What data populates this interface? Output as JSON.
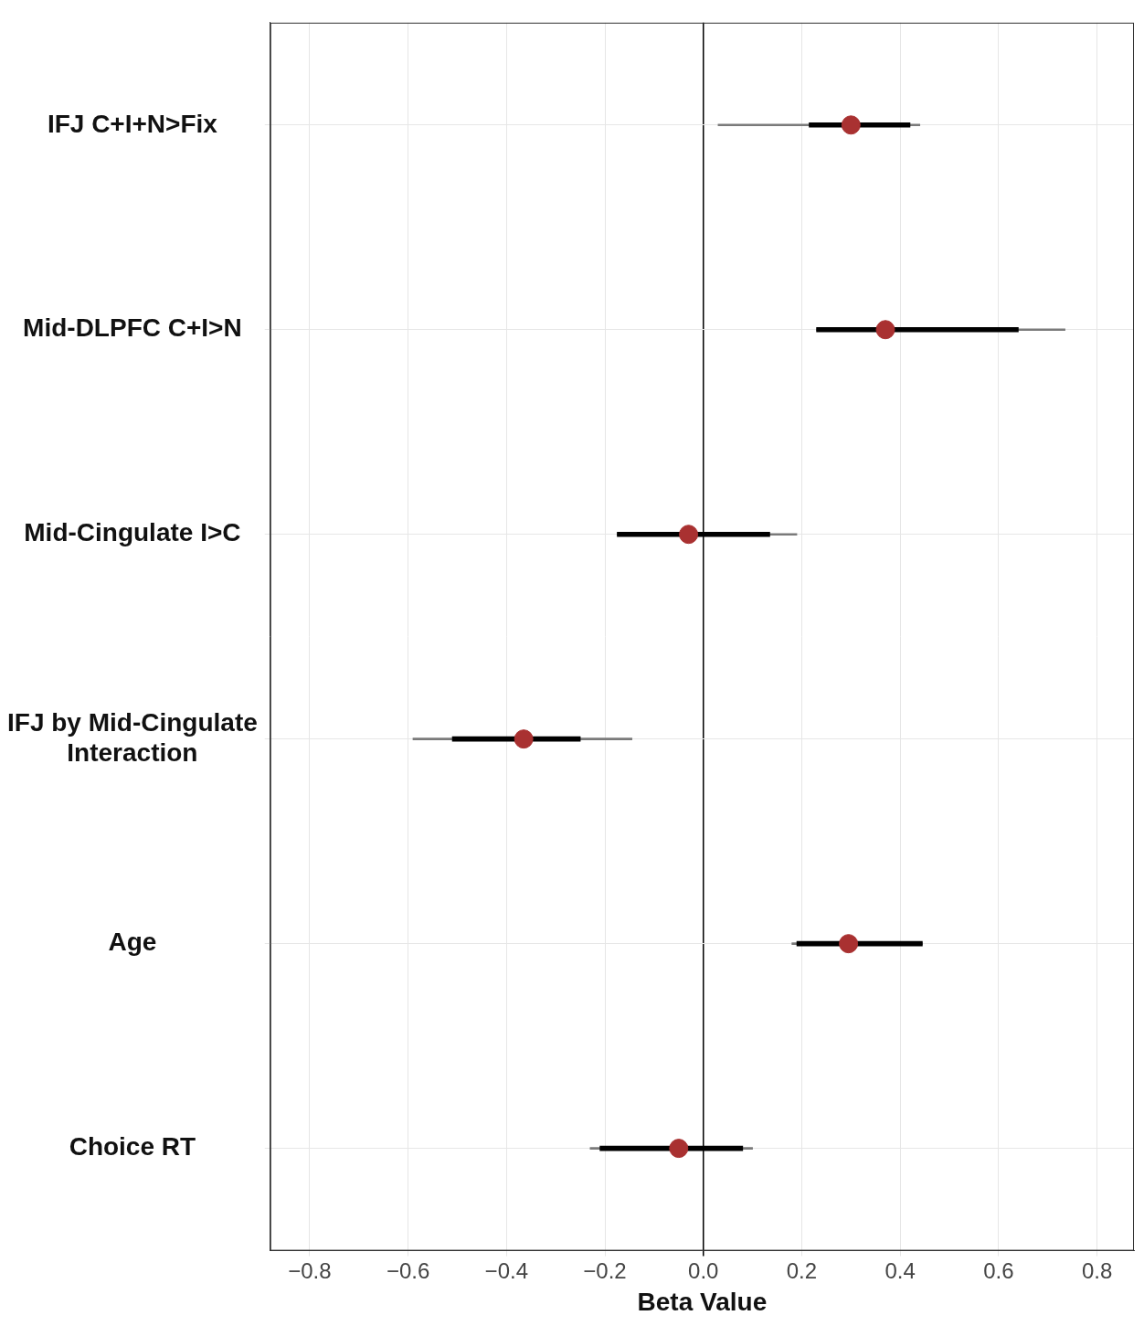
{
  "chart_data": {
    "type": "forest",
    "x_label": "Beta Value",
    "categories": [
      "IFJ C+I+N>Fix",
      "Mid-DLPFC C+I>N",
      "Mid-Cingulate I>C",
      [
        "IFJ by Mid-Cingulate",
        "Interaction"
      ],
      "Age",
      "Choice RT"
    ],
    "series": [
      {
        "name": "Beta",
        "color": "#a93131",
        "marker": "circle",
        "values": [
          0.3,
          0.37,
          -0.03,
          -0.365,
          0.295,
          -0.05
        ],
        "interval_inner": [
          [
            0.215,
            0.42
          ],
          [
            0.23,
            0.64
          ],
          [
            -0.175,
            0.135
          ],
          [
            -0.51,
            -0.25
          ],
          [
            0.19,
            0.445
          ],
          [
            -0.21,
            0.08
          ]
        ],
        "interval_outer": [
          [
            0.03,
            0.44
          ],
          [
            0.23,
            0.735
          ],
          [
            -0.175,
            0.19
          ],
          [
            -0.59,
            -0.145
          ],
          [
            0.18,
            0.445
          ],
          [
            -0.23,
            0.1
          ]
        ]
      }
    ],
    "xlim": [
      -0.88,
      0.875
    ],
    "xticks": [
      {
        "value": -0.8,
        "label": "−0.8"
      },
      {
        "value": -0.6,
        "label": "−0.6"
      },
      {
        "value": -0.4,
        "label": "−0.4"
      },
      {
        "value": -0.2,
        "label": "−0.2"
      },
      {
        "value": 0,
        "label": "0.0"
      },
      0.2,
      0.4,
      0.6,
      0.8
    ],
    "grid": true
  }
}
